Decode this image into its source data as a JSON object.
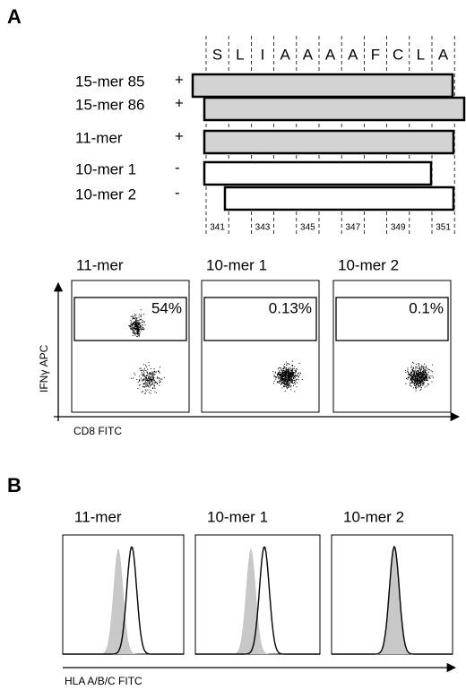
{
  "panel_a": {
    "label": "A",
    "residues": [
      "S",
      "L",
      "I",
      "A",
      "A",
      "A",
      "A",
      "F",
      "C",
      "L",
      "A"
    ],
    "peptides": [
      {
        "name": "15-mer 85",
        "response": "+"
      },
      {
        "name": "15-mer 86",
        "response": "+"
      },
      {
        "name": "11-mer",
        "response": "+"
      },
      {
        "name": "10-mer 1",
        "response": "-"
      },
      {
        "name": "10-mer 2",
        "response": "-"
      }
    ],
    "positions": [
      "341",
      "343",
      "345",
      "347",
      "349",
      "351"
    ],
    "plots": [
      {
        "title": "11-mer",
        "percent": "54%"
      },
      {
        "title": "10-mer 1",
        "percent": "0.13%"
      },
      {
        "title": "10-mer 2",
        "percent": "0.1%"
      }
    ],
    "y_axis_label": "IFNγ APC",
    "x_axis_label": "CD8 FITC"
  },
  "panel_b": {
    "label": "B",
    "plots": [
      "11-mer",
      "10-mer 1",
      "10-mer 2"
    ],
    "x_axis_label": "HLA  A/B/C FITC"
  }
}
